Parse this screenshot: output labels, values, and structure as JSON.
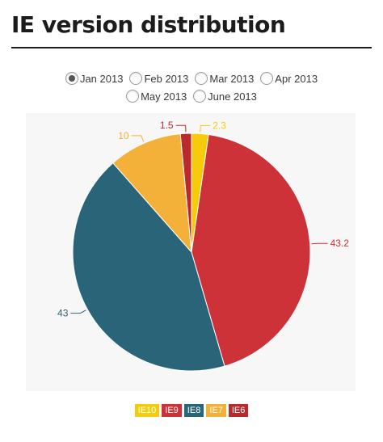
{
  "title": "IE version distribution",
  "radios": {
    "selected": 0,
    "options": [
      "Jan 2013",
      "Feb 2013",
      "Mar 2013",
      "Apr 2013",
      "May 2013",
      "June 2013"
    ]
  },
  "colors": {
    "IE10": "#f6cb0c",
    "IE9": "#cc3238",
    "IE8": "#2a6478",
    "IE7": "#f3b13a",
    "IE6": "#b82a2c"
  },
  "chart_data": {
    "type": "pie",
    "title": "IE version distribution",
    "categories": [
      "IE10",
      "IE9",
      "IE8",
      "IE7",
      "IE6"
    ],
    "values": [
      2.3,
      43.2,
      43,
      10,
      1.5
    ],
    "value_labels": [
      "2.3",
      "43.2",
      "43",
      "10",
      "1.5"
    ],
    "legend": [
      "IE10",
      "IE9",
      "IE8",
      "IE7",
      "IE6"
    ],
    "legend_position": "bottom"
  }
}
